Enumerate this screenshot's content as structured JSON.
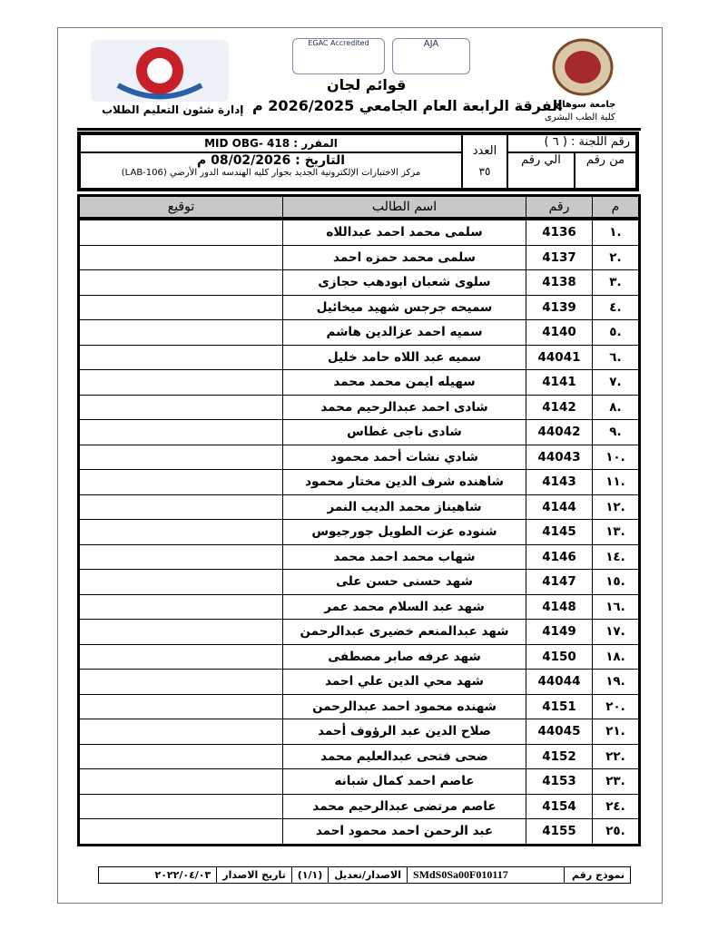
{
  "header": {
    "university": "جامعة سوهاج",
    "faculty": "كلية الطب البشرى",
    "department": "إدارة شئون التعليم الطلاب",
    "title": "قوائم لجان",
    "subtitle": "الفرقة الرابعة العام الجامعي 2026/2025 م",
    "logo_text_1": "EGAC Accredited",
    "logo_text_2": "AJA"
  },
  "info": {
    "committee": "رقم اللجنة : ( ٦ )",
    "from_label": "من رقم",
    "to_label": "الي رقم",
    "count_label": "العدد",
    "count": "٣٥",
    "course": "المقرر :  MID OBG- 418",
    "date": "التاريخ : 08/02/2026 م",
    "location": "مركز الاختبارات الإلكترونية الجديد بجوار كليه الهندسه الدور الأرضي (LAB-106)"
  },
  "table": {
    "headers": {
      "index": "م",
      "number": "رقم",
      "name": "اسم الطالب",
      "signature": "توقيع"
    },
    "rows": [
      {
        "i": ".١",
        "n": "4136",
        "name": "سلمى محمد احمد عبداللاه"
      },
      {
        "i": ".٢",
        "n": "4137",
        "name": "سلمى محمد حمزه احمد"
      },
      {
        "i": ".٣",
        "n": "4138",
        "name": "سلوى شعبان ابودهب حجازى"
      },
      {
        "i": ".٤",
        "n": "4139",
        "name": "سميحه جرجس شهيد ميخائيل"
      },
      {
        "i": ".٥",
        "n": "4140",
        "name": "سميه احمد عزالدين هاشم"
      },
      {
        "i": ".٦",
        "n": "44041",
        "name": "سميه عبد اللاه حامد خليل"
      },
      {
        "i": ".٧",
        "n": "4141",
        "name": "سهيله ايمن محمد محمد"
      },
      {
        "i": ".٨",
        "n": "4142",
        "name": "شادى احمد عبدالرحيم محمد"
      },
      {
        "i": ".٩",
        "n": "44042",
        "name": "شادى ناجى غطاس"
      },
      {
        "i": ".١٠",
        "n": "44043",
        "name": "شادي نشات أحمد محمود"
      },
      {
        "i": ".١١",
        "n": "4143",
        "name": "شاهنده شرف الدين مختار محمود"
      },
      {
        "i": ".١٢",
        "n": "4144",
        "name": "شاهيناز محمد الديب النمر"
      },
      {
        "i": ".١٣",
        "n": "4145",
        "name": "شنوده عزت الطويل جورجيوس"
      },
      {
        "i": ".١٤",
        "n": "4146",
        "name": "شهاب محمد احمد محمد"
      },
      {
        "i": ".١٥",
        "n": "4147",
        "name": "شهد حسنى حسن على"
      },
      {
        "i": ".١٦",
        "n": "4148",
        "name": "شهد عبد السلام محمد عمر"
      },
      {
        "i": ".١٧",
        "n": "4149",
        "name": "شهد عبدالمنعم خضيرى عبدالرحمن"
      },
      {
        "i": ".١٨",
        "n": "4150",
        "name": "شهد عرفه صابر مصطفى"
      },
      {
        "i": ".١٩",
        "n": "44044",
        "name": "شهد محي الدين علي احمد"
      },
      {
        "i": ".٢٠",
        "n": "4151",
        "name": "شهنده محمود احمد عبدالرحمن"
      },
      {
        "i": ".٢١",
        "n": "44045",
        "name": "صلاح الدين عبد الرؤوف أحمد"
      },
      {
        "i": ".٢٢",
        "n": "4152",
        "name": "ضحى فتحى عبدالعليم محمد"
      },
      {
        "i": ".٢٣",
        "n": "4153",
        "name": "عاصم احمد كمال شبانه"
      },
      {
        "i": ".٢٤",
        "n": "4154",
        "name": "عاصم مرتضى عبدالرحيم محمد"
      },
      {
        "i": ".٢٥",
        "n": "4155",
        "name": "عبد الرحمن احمد محمود احمد"
      }
    ]
  },
  "footer": {
    "form_label": "نموذج رقم",
    "form_number": "SMdS0Sa00F010117",
    "version_label": "الاصدار/تعديل",
    "version": "(١/١)",
    "issue_label": "تاريخ الاصدار",
    "issue_date": "٢٠٢٢/٠٤/٠٣"
  }
}
